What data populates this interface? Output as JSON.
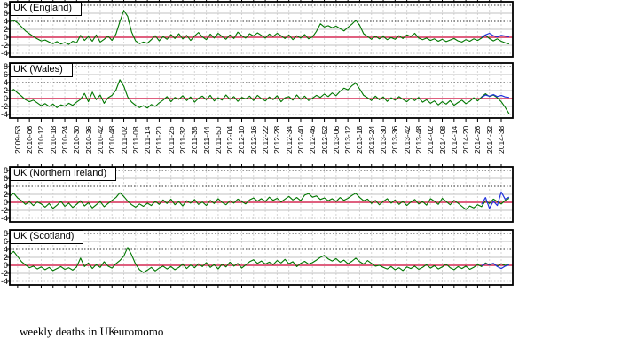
{
  "chart_data": {
    "type": "line",
    "title": "weekly deaths in UK",
    "source": "euromomo",
    "y_tick_labels": [
      "8",
      "6",
      "4",
      "2",
      "0",
      "-2",
      "-4"
    ],
    "ylim": [
      -4.7,
      8.8
    ],
    "baseline_value": 0,
    "reference_lines": {
      "solid_gray": [
        6,
        2,
        -2
      ],
      "dotted_black": [
        8,
        4
      ],
      "dotted_gray": [
        -4
      ]
    },
    "grid": "on",
    "x_unit": "ISO year-week, one sample per 2 weeks starting 2009-49",
    "x_tick_labels": [
      "2009-53",
      "2010-06",
      "2010-12",
      "2010-18",
      "2010-24",
      "2010-30",
      "2010-36",
      "2010-42",
      "2010-48",
      "2011-02",
      "2011-08",
      "2011-14",
      "2011-20",
      "2011-26",
      "2011-32",
      "2011-38",
      "2011-44",
      "2011-50",
      "2012-04",
      "2012-10",
      "2012-16",
      "2012-22",
      "2012-28",
      "2012-34",
      "2012-40",
      "2012-46",
      "2012-52",
      "2013-06",
      "2013-12",
      "2013-18",
      "2013-24",
      "2013-30",
      "2013-36",
      "2013-42",
      "2013-48",
      "2014-02",
      "2014-08",
      "2014-14",
      "2014-20",
      "2014-26",
      "2014-32",
      "2014-38"
    ],
    "colors": {
      "series": "#007700",
      "recent": "#2233dd",
      "baseline": "#cc0033",
      "grid_major": "#c0c0c0",
      "grid_dotted_black": "#333333",
      "grid_dotted_gray": "#c8c8c8",
      "grid_vertical": "#d6d6d6",
      "frame": "#000000"
    },
    "panels": [
      {
        "id": "england",
        "title": "UK (England)",
        "values": [
          3.9,
          4.3,
          3.6,
          2.6,
          1.6,
          0.9,
          0.2,
          -0.4,
          -0.9,
          -0.7,
          -1.2,
          -1.6,
          -1.1,
          -1.7,
          -1.3,
          -1.8,
          -1.0,
          -1.4,
          0.5,
          -0.8,
          0.2,
          -1.0,
          0.6,
          -1.2,
          -0.5,
          0.3,
          -0.8,
          0.8,
          3.9,
          6.7,
          5.2,
          1.3,
          -0.9,
          -1.6,
          -1.2,
          -1.5,
          -0.6,
          0.4,
          -0.9,
          0.2,
          -0.5,
          0.7,
          -0.3,
          0.9,
          -0.4,
          0.5,
          -0.8,
          0.3,
          1.2,
          0.1,
          -0.6,
          0.8,
          -0.2,
          1.0,
          0.2,
          -0.5,
          0.6,
          -0.3,
          1.3,
          0.4,
          -0.2,
          0.9,
          0.3,
          1.1,
          0.5,
          -0.2,
          0.8,
          0.2,
          1.0,
          0.4,
          -0.3,
          0.6,
          -0.6,
          0.4,
          -0.2,
          0.7,
          -0.4,
          0.1,
          1.5,
          3.4,
          2.6,
          2.9,
          2.4,
          2.8,
          2.2,
          1.6,
          2.5,
          3.3,
          4.3,
          3.0,
          0.9,
          0.2,
          -0.5,
          0.3,
          -0.4,
          0.2,
          -0.6,
          -0.1,
          -0.5,
          0.4,
          -0.3,
          0.6,
          0.2,
          1.0,
          -0.2,
          -0.6,
          -0.2,
          -0.8,
          -0.4,
          -1.0,
          -0.5,
          -1.1,
          -0.7,
          -0.3,
          -0.9,
          -1.2,
          -0.6,
          -1.0,
          -0.4,
          -0.8,
          -0.2,
          0.5,
          -0.3,
          -0.9,
          -0.4,
          -1.0,
          -1.4,
          -1.7
        ],
        "recent_values_blue": [
          0.0,
          0.6,
          1.0,
          0.4,
          0.1,
          0.5,
          0.3,
          0.1
        ]
      },
      {
        "id": "wales",
        "title": "UK (Wales)",
        "values": [
          1.8,
          2.3,
          1.4,
          0.6,
          -0.3,
          -0.8,
          -0.4,
          -1.1,
          -1.8,
          -1.3,
          -2.0,
          -1.4,
          -2.3,
          -1.6,
          -1.9,
          -1.2,
          -1.7,
          -0.9,
          -0.2,
          1.3,
          -0.8,
          1.6,
          -0.3,
          0.9,
          -1.2,
          0.2,
          0.8,
          2.1,
          4.7,
          3.1,
          0.4,
          -0.9,
          -1.7,
          -2.3,
          -1.8,
          -2.4,
          -1.5,
          -2.0,
          -1.1,
          -0.4,
          0.5,
          -0.8,
          0.3,
          -0.2,
          0.7,
          -0.5,
          0.4,
          -0.9,
          0.1,
          0.6,
          -0.3,
          0.8,
          -0.6,
          0.2,
          -0.4,
          0.9,
          -0.2,
          0.5,
          -0.7,
          0.3,
          -0.1,
          0.6,
          -0.5,
          0.8,
          0.0,
          -0.6,
          0.4,
          -0.3,
          0.7,
          -0.8,
          0.2,
          0.5,
          -0.4,
          0.9,
          -0.2,
          0.6,
          -0.5,
          0.1,
          0.8,
          0.3,
          1.1,
          0.5,
          1.4,
          0.7,
          1.8,
          2.6,
          2.2,
          3.2,
          3.9,
          2.4,
          0.8,
          0.2,
          -0.5,
          0.6,
          -0.3,
          0.4,
          -0.7,
          0.2,
          -0.4,
          0.5,
          -0.2,
          -0.8,
          0.1,
          -0.5,
          0.3,
          -0.9,
          -0.3,
          -1.2,
          -0.6,
          -1.6,
          -0.8,
          -1.4,
          -0.5,
          -1.7,
          -1.0,
          -0.4,
          -1.3,
          -0.7,
          0.2,
          -0.6,
          0.4,
          1.2,
          0.5,
          0.9,
          0.2,
          -0.8,
          -2.2,
          -3.8
        ],
        "recent_values_blue": [
          0.3,
          0.9,
          0.6,
          1.0,
          0.5,
          0.8,
          0.4,
          0.3
        ]
      },
      {
        "id": "northern-ireland",
        "title": "UK (Northern Ireland)",
        "values": [
          1.6,
          2.3,
          1.1,
          0.4,
          -0.5,
          0.2,
          -0.8,
          0.1,
          -0.4,
          -1.2,
          -0.3,
          -1.5,
          -0.7,
          0.3,
          -1.0,
          -0.2,
          -1.3,
          -0.5,
          0.4,
          -0.9,
          -0.1,
          -1.4,
          -0.6,
          0.2,
          -1.1,
          -0.3,
          0.5,
          1.2,
          2.4,
          1.5,
          0.3,
          -0.6,
          -1.2,
          -0.4,
          -1.0,
          -0.2,
          -0.8,
          0.3,
          -0.5,
          0.6,
          -0.3,
          0.8,
          -0.6,
          0.2,
          -0.9,
          0.4,
          -0.2,
          0.7,
          -0.5,
          0.1,
          -0.8,
          0.5,
          -0.3,
          0.9,
          0.0,
          -0.6,
          0.4,
          -0.2,
          0.8,
          0.2,
          -0.4,
          0.6,
          1.1,
          0.3,
          0.9,
          0.2,
          1.3,
          0.5,
          1.0,
          0.1,
          0.8,
          1.5,
          0.6,
          1.2,
          0.4,
          1.8,
          2.2,
          1.3,
          1.6,
          0.7,
          1.1,
          0.4,
          0.9,
          0.2,
          1.2,
          0.5,
          1.0,
          1.7,
          2.3,
          1.2,
          0.4,
          0.8,
          -0.3,
          0.5,
          -0.6,
          0.2,
          0.9,
          -0.2,
          0.6,
          -0.5,
          0.3,
          -0.8,
          0.1,
          0.7,
          -0.4,
          0.2,
          -0.7,
          0.9,
          0.3,
          -0.5,
          1.0,
          0.2,
          -0.6,
          0.5,
          -0.2,
          -1.0,
          -1.8,
          -0.9,
          -1.4,
          -0.6,
          -1.1,
          0.4,
          -0.3,
          0.8,
          0.2,
          -0.4,
          0.5,
          1.0
        ],
        "recent_values_blue": [
          -0.5,
          1.2,
          -1.5,
          0.3,
          -0.8,
          2.6,
          0.8,
          1.3
        ]
      },
      {
        "id": "scotland",
        "title": "UK (Scotland)",
        "values": [
          2.8,
          3.5,
          2.2,
          0.9,
          0.1,
          -0.6,
          -0.2,
          -0.9,
          -0.4,
          -1.1,
          -0.5,
          -1.3,
          -0.8,
          -0.3,
          -1.0,
          -0.6,
          -1.2,
          -0.4,
          1.8,
          -0.3,
          0.6,
          -0.8,
          0.2,
          -0.5,
          0.9,
          -0.2,
          -0.7,
          0.4,
          1.2,
          2.3,
          4.5,
          2.6,
          0.3,
          -1.1,
          -1.8,
          -1.2,
          -0.5,
          -1.4,
          -0.7,
          -0.2,
          -0.9,
          -0.3,
          -1.1,
          -0.5,
          0.3,
          -0.8,
          0.1,
          -0.6,
          0.4,
          -0.3,
          0.7,
          -0.5,
          0.2,
          -0.9,
          0.3,
          -0.4,
          0.8,
          -0.2,
          0.5,
          -0.7,
          0.1,
          0.9,
          1.4,
          0.5,
          1.1,
          0.3,
          0.8,
          0.2,
          1.2,
          0.6,
          1.5,
          0.4,
          0.9,
          -0.3,
          0.5,
          1.0,
          0.3,
          0.7,
          1.3,
          2.0,
          2.5,
          1.6,
          1.1,
          1.7,
          0.8,
          1.3,
          0.4,
          1.0,
          1.8,
          0.9,
          0.3,
          1.2,
          0.5,
          -0.2,
          0.0,
          -0.5,
          -0.9,
          -0.3,
          -1.1,
          -0.6,
          -1.3,
          -0.4,
          -0.8,
          -0.2,
          -1.0,
          -0.5,
          0.2,
          -0.7,
          -0.1,
          -0.9,
          -0.4,
          0.3,
          -0.6,
          -1.1,
          -0.3,
          -0.8,
          -0.2,
          -1.0,
          -0.5,
          0.2,
          -0.3,
          0.6,
          0.1,
          0.5,
          -0.2,
          0.4,
          0.0,
          0.2
        ],
        "recent_values_blue": [
          -0.1,
          0.4,
          0.2,
          0.5,
          -0.3,
          -0.8,
          -0.2,
          0.1
        ]
      }
    ]
  },
  "footer": {
    "caption": "weekly deaths in UK",
    "brand": "euromomo"
  }
}
